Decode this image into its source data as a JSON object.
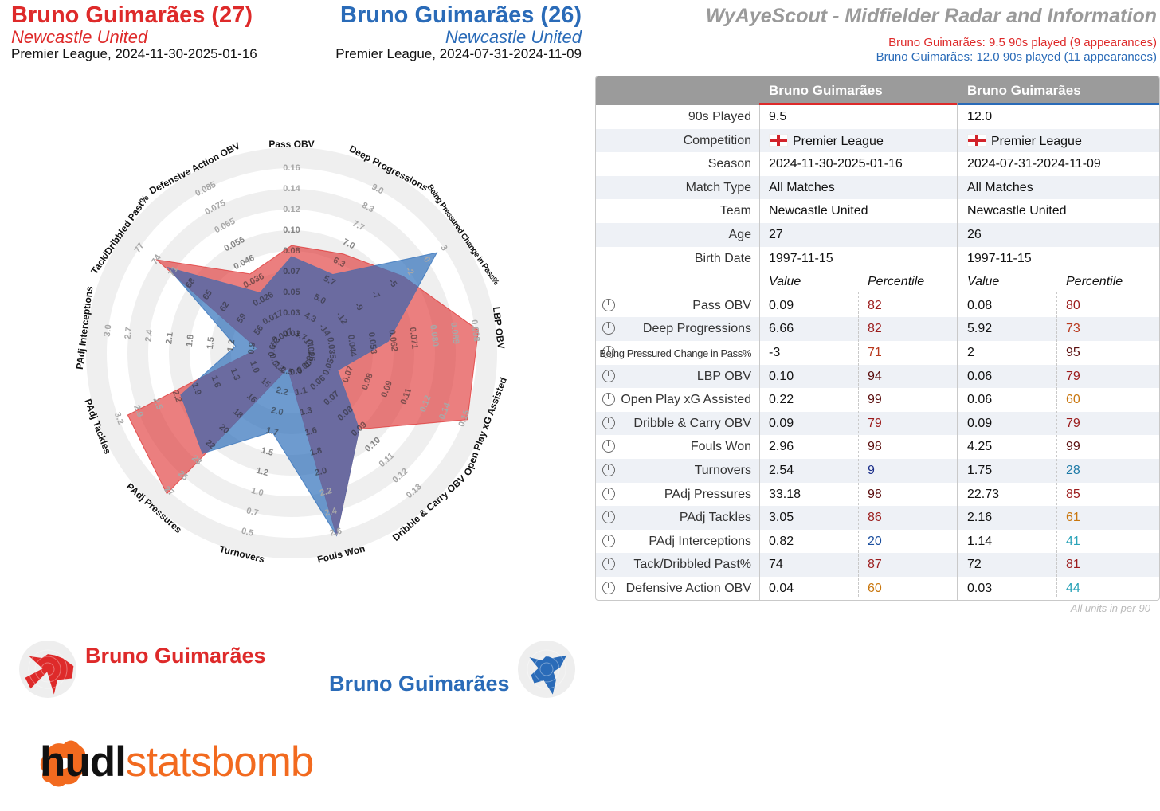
{
  "header": {
    "player1_name": "Bruno Guimarães (27)",
    "player1_team": "Newcastle United",
    "player1_comp": "Premier League, 2024-11-30-2025-01-16",
    "player2_name": "Bruno Guimarães (26)",
    "player2_team": "Newcastle United",
    "player2_comp": "Premier League, 2024-07-31-2024-11-09",
    "title": "WyAyeScout - Midfielder Radar and Information",
    "line1": "Bruno Guimarães: 9.5 90s played (9 appearances)",
    "line2": "Bruno Guimarães: 12.0 90s played (11 appearances)"
  },
  "colors": {
    "player1": "#de2a2a",
    "player2": "#2a6bb8",
    "overlap": "#6b6ba0"
  },
  "chart_data": {
    "type": "radar",
    "axes": [
      {
        "name": "Pass OBV",
        "ticks": [
          "0.01",
          "0.03",
          "0.05",
          "0.07",
          "0.08",
          "0.10",
          "0.12",
          "0.14",
          "0.16"
        ]
      },
      {
        "name": "Deep Progressions",
        "ticks": [
          "3.7",
          "4.3",
          "5.0",
          "5.7",
          "6.3",
          "7.0",
          "7.7",
          "8.3",
          "9.0"
        ]
      },
      {
        "name": "Being Pressured Change in Pass%",
        "ticks": [
          "-17",
          "-14",
          "-12",
          "-9",
          "-7",
          "-5",
          "-2",
          "0",
          "3"
        ]
      },
      {
        "name": "LBP OBV",
        "ticks": [
          "0.026",
          "0.035",
          "0.044",
          "0.053",
          "0.062",
          "0.071",
          "0.080",
          "0.089",
          "0.098"
        ]
      },
      {
        "name": "Open Play xG Assisted",
        "ticks": [
          "0.04",
          "0.05",
          "0.07",
          "0.08",
          "0.09",
          "0.11",
          "0.12",
          "0.14",
          "0.15"
        ]
      },
      {
        "name": "Dribble & Carry OBV",
        "ticks": [
          "0.05",
          "0.06",
          "0.07",
          "0.08",
          "0.09",
          "0.10",
          "0.11",
          "0.12",
          "0.13"
        ]
      },
      {
        "name": "Fouls Won",
        "ticks": [
          "0.9",
          "1.1",
          "1.3",
          "1.6",
          "1.8",
          "2.0",
          "2.2",
          "2.4",
          "2.6"
        ]
      },
      {
        "name": "Turnovers",
        "ticks": [
          "2.5",
          "2.2",
          "2.0",
          "1.7",
          "1.5",
          "1.2",
          "1.0",
          "0.7",
          "0.5"
        ]
      },
      {
        "name": "PAdj Pressures",
        "ticks": [
          "13",
          "15",
          "16",
          "18",
          "20",
          "22",
          "23",
          "25",
          "27"
        ]
      },
      {
        "name": "PAdj Tackles",
        "ticks": [
          "0.6",
          "1.0",
          "1.3",
          "1.6",
          "1.9",
          "2.2",
          "2.5",
          "2.9",
          "3.2"
        ]
      },
      {
        "name": "PAdj Interceptions",
        "ticks": [
          "0.6",
          "0.9",
          "1.2",
          "1.5",
          "1.8",
          "2.1",
          "2.4",
          "2.7",
          "3.0"
        ]
      },
      {
        "name": "Tack/Dribbled Past%",
        "ticks": [
          "53",
          "56",
          "59",
          "62",
          "65",
          "68",
          "71",
          "74",
          "77"
        ]
      },
      {
        "name": "Defensive Action OBV",
        "ticks": [
          "0.007",
          "0.017",
          "0.026",
          "0.036",
          "0.046",
          "0.056",
          "0.065",
          "0.075",
          "0.085"
        ]
      }
    ],
    "series": [
      {
        "name": "Bruno Guimarães",
        "color": "#de2a2a",
        "values": [
          0.09,
          6.66,
          -3,
          0.1,
          0.22,
          0.09,
          2.96,
          2.54,
          33.18,
          3.05,
          0.82,
          74,
          0.04
        ]
      },
      {
        "name": "Bruno Guimarães",
        "color": "#2a6bb8",
        "values": [
          0.08,
          5.92,
          2,
          0.06,
          0.06,
          0.09,
          4.25,
          1.75,
          22.73,
          2.16,
          1.14,
          72,
          0.03
        ]
      }
    ]
  },
  "legend": {
    "p1": "Bruno Guimarães",
    "p2": "Bruno Guimarães"
  },
  "logo": {
    "part1": "hudl",
    "part2": "statsbomb"
  },
  "table": {
    "col1": "Bruno Guimarães",
    "col2": "Bruno Guimarães",
    "info_rows": [
      {
        "label": "90s Played",
        "v1": "9.5",
        "v2": "12.0"
      },
      {
        "label": "Competition",
        "v1": "Premier League",
        "v2": "Premier League",
        "flag": true
      },
      {
        "label": "Season",
        "v1": "2024-11-30-2025-01-16",
        "v2": "2024-07-31-2024-11-09"
      },
      {
        "label": "Match Type",
        "v1": "All Matches",
        "v2": "All Matches"
      },
      {
        "label": "Team",
        "v1": "Newcastle United",
        "v2": "Newcastle United"
      },
      {
        "label": "Age",
        "v1": "27",
        "v2": "26"
      },
      {
        "label": "Birth Date",
        "v1": "1997-11-15",
        "v2": "1997-11-15"
      }
    ],
    "sub_header": {
      "value": "Value",
      "percentile": "Percentile"
    },
    "metric_rows": [
      {
        "label": "Pass OBV",
        "v1": "0.09",
        "p1": "82",
        "c1": "#9b1b1b",
        "v2": "0.08",
        "p2": "80",
        "c2": "#9b1b1b"
      },
      {
        "label": "Deep Progressions",
        "v1": "6.66",
        "p1": "82",
        "c1": "#9b1b1b",
        "v2": "5.92",
        "p2": "73",
        "c2": "#b8381d"
      },
      {
        "label": "Being Pressured Change in Pass%",
        "v1": "-3",
        "p1": "71",
        "c1": "#b8381d",
        "v2": "2",
        "p2": "95",
        "c2": "#5a0e0e"
      },
      {
        "label": "LBP OBV",
        "v1": "0.10",
        "p1": "94",
        "c1": "#5a0e0e",
        "v2": "0.06",
        "p2": "79",
        "c2": "#9b1b1b"
      },
      {
        "label": "Open Play xG Assisted",
        "v1": "0.22",
        "p1": "99",
        "c1": "#5a0e0e",
        "v2": "0.06",
        "p2": "60",
        "c2": "#c9770f"
      },
      {
        "label": "Dribble & Carry OBV",
        "v1": "0.09",
        "p1": "79",
        "c1": "#9b1b1b",
        "v2": "0.09",
        "p2": "79",
        "c2": "#9b1b1b"
      },
      {
        "label": "Fouls Won",
        "v1": "2.96",
        "p1": "98",
        "c1": "#5a0e0e",
        "v2": "4.25",
        "p2": "99",
        "c2": "#5a0e0e"
      },
      {
        "label": "Turnovers",
        "v1": "2.54",
        "p1": "9",
        "c1": "#1b2f8a",
        "v2": "1.75",
        "p2": "28",
        "c2": "#1c79a6"
      },
      {
        "label": "PAdj Pressures",
        "v1": "33.18",
        "p1": "98",
        "c1": "#5a0e0e",
        "v2": "22.73",
        "p2": "85",
        "c2": "#9b1b1b"
      },
      {
        "label": "PAdj Tackles",
        "v1": "3.05",
        "p1": "86",
        "c1": "#9b1b1b",
        "v2": "2.16",
        "p2": "61",
        "c2": "#c9770f"
      },
      {
        "label": "PAdj Interceptions",
        "v1": "0.82",
        "p1": "20",
        "c1": "#1c4f9e",
        "v2": "1.14",
        "p2": "41",
        "c2": "#2aa3b8"
      },
      {
        "label": "Tack/Dribbled Past%",
        "v1": "74",
        "p1": "87",
        "c1": "#9b1b1b",
        "v2": "72",
        "p2": "81",
        "c2": "#9b1b1b"
      },
      {
        "label": "Defensive Action OBV",
        "v1": "0.04",
        "p1": "60",
        "c1": "#c9770f",
        "v2": "0.03",
        "p2": "44",
        "c2": "#2aa3b8"
      }
    ],
    "footnote": "All units in per-90"
  }
}
